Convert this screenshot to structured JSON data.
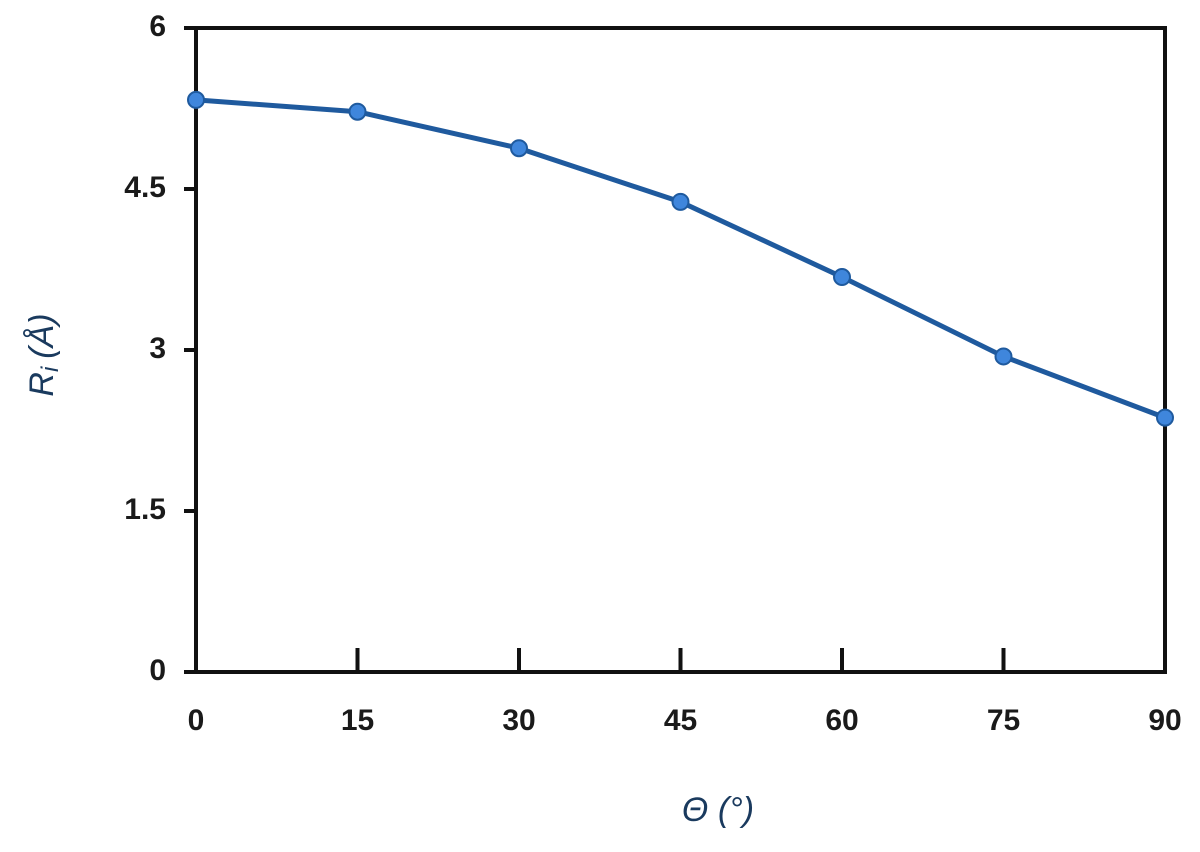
{
  "chart_data": {
    "type": "line",
    "xlabel": "Θ (°)",
    "ylabel": {
      "symbol": "R",
      "subscript": "i",
      "unit": "(Å)"
    },
    "x": [
      0,
      15,
      30,
      45,
      60,
      75,
      90
    ],
    "series": [
      {
        "color": "#1f5a9e",
        "marker_color": "#3f86dc",
        "values": [
          5.33,
          5.22,
          4.88,
          4.38,
          3.68,
          2.94,
          2.37
        ]
      }
    ],
    "xlim": [
      0,
      90
    ],
    "xticks": [
      0,
      15,
      30,
      45,
      60,
      75,
      90
    ],
    "ylim": [
      0,
      6
    ],
    "yticks": [
      0,
      1.5,
      3,
      4.5,
      6
    ],
    "grid": false
  }
}
